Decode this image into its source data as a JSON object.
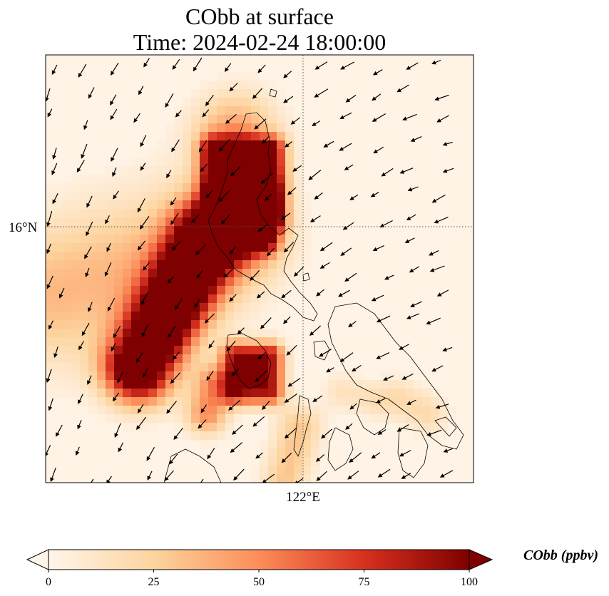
{
  "title": {
    "line1": "CObb at surface",
    "line2": "Time: 2024-02-24 18:00:00"
  },
  "map": {
    "lat_label": "16°N",
    "lon_label": "122°E",
    "gridline_style": "dotted",
    "coastline": "black",
    "layers": [
      "CObb concentration field",
      "wind vectors",
      "coastlines",
      "graticule"
    ]
  },
  "colorbar": {
    "label": "CObb (ppbv)",
    "ticks": [
      "0",
      "25",
      "50",
      "75",
      "100"
    ],
    "tick_values": [
      0,
      25,
      50,
      75,
      100
    ],
    "range": [
      0,
      100
    ],
    "extend": "both",
    "colormap": "OrRd",
    "colors": [
      "#fff5eb",
      "#fdd49e",
      "#fc8d59",
      "#d7301f",
      "#7f0000"
    ]
  }
}
